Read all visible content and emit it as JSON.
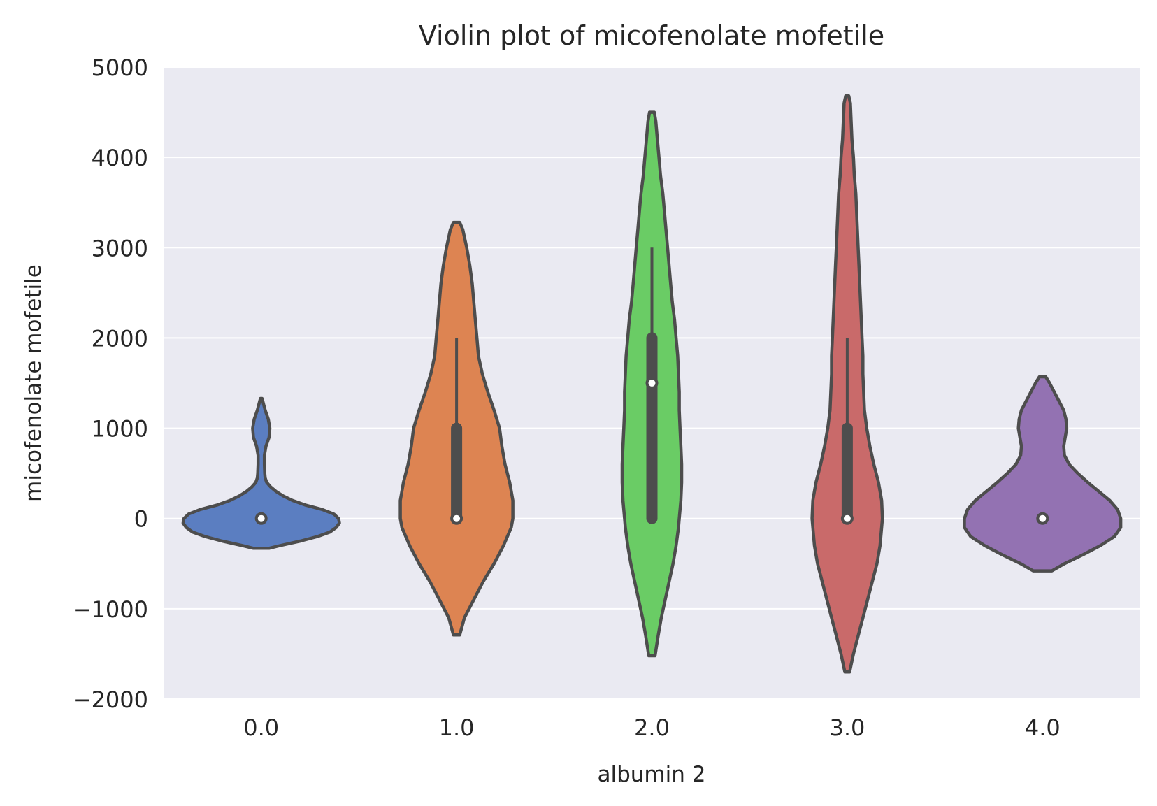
{
  "chart_data": {
    "type": "violin",
    "title": "Violin plot of micofenolate mofetile",
    "xlabel": "albumin 2",
    "ylabel": "micofenolate mofetile",
    "ylim": [
      -2000,
      5000
    ],
    "yticks": [
      -2000,
      -1000,
      0,
      1000,
      2000,
      3000,
      4000,
      5000
    ],
    "ytick_labels": [
      "−2000",
      "−1000",
      "0",
      "1000",
      "2000",
      "3000",
      "4000",
      "5000"
    ],
    "grid": true,
    "categories": [
      "0.0",
      "1.0",
      "2.0",
      "3.0",
      "4.0"
    ],
    "violins": [
      {
        "category": "0.0",
        "color": "#5b7ec1",
        "median": 0,
        "box": [
          0,
          0
        ],
        "whisker": [
          0,
          0
        ],
        "profile": [
          [
            -330,
            0.1
          ],
          [
            -300,
            0.24
          ],
          [
            -250,
            0.5
          ],
          [
            -200,
            0.72
          ],
          [
            -150,
            0.88
          ],
          [
            -100,
            0.96
          ],
          [
            -50,
            1.0
          ],
          [
            0,
            0.99
          ],
          [
            50,
            0.93
          ],
          [
            100,
            0.78
          ],
          [
            150,
            0.56
          ],
          [
            200,
            0.4
          ],
          [
            250,
            0.28
          ],
          [
            300,
            0.19
          ],
          [
            350,
            0.12
          ],
          [
            400,
            0.07
          ],
          [
            450,
            0.05
          ],
          [
            500,
            0.045
          ],
          [
            600,
            0.04
          ],
          [
            700,
            0.04
          ],
          [
            800,
            0.06
          ],
          [
            900,
            0.1
          ],
          [
            1000,
            0.11
          ],
          [
            1100,
            0.09
          ],
          [
            1200,
            0.05
          ],
          [
            1300,
            0.02
          ],
          [
            1330,
            0.01
          ]
        ]
      },
      {
        "category": "1.0",
        "color": "#dd8452",
        "median": 0,
        "box": [
          0,
          1000
        ],
        "whisker": [
          0,
          2000
        ],
        "profile": [
          [
            -1290,
            0.04
          ],
          [
            -1100,
            0.1
          ],
          [
            -900,
            0.22
          ],
          [
            -700,
            0.34
          ],
          [
            -500,
            0.48
          ],
          [
            -300,
            0.6
          ],
          [
            -100,
            0.7
          ],
          [
            0,
            0.72
          ],
          [
            200,
            0.72
          ],
          [
            400,
            0.68
          ],
          [
            600,
            0.62
          ],
          [
            800,
            0.58
          ],
          [
            1000,
            0.55
          ],
          [
            1200,
            0.48
          ],
          [
            1400,
            0.4
          ],
          [
            1600,
            0.33
          ],
          [
            1800,
            0.28
          ],
          [
            2000,
            0.26
          ],
          [
            2200,
            0.24
          ],
          [
            2400,
            0.22
          ],
          [
            2600,
            0.2
          ],
          [
            2800,
            0.17
          ],
          [
            3000,
            0.13
          ],
          [
            3200,
            0.08
          ],
          [
            3280,
            0.04
          ]
        ]
      },
      {
        "category": "2.0",
        "color": "#6acc65",
        "median": 1500,
        "box": [
          0,
          2000
        ],
        "whisker": [
          0,
          3000
        ],
        "profile": [
          [
            -1520,
            0.04
          ],
          [
            -1300,
            0.08
          ],
          [
            -1100,
            0.12
          ],
          [
            -900,
            0.17
          ],
          [
            -700,
            0.22
          ],
          [
            -500,
            0.27
          ],
          [
            -300,
            0.31
          ],
          [
            -100,
            0.34
          ],
          [
            0,
            0.35
          ],
          [
            200,
            0.37
          ],
          [
            400,
            0.38
          ],
          [
            600,
            0.38
          ],
          [
            800,
            0.37
          ],
          [
            1000,
            0.36
          ],
          [
            1200,
            0.35
          ],
          [
            1400,
            0.35
          ],
          [
            1600,
            0.34
          ],
          [
            1800,
            0.33
          ],
          [
            2000,
            0.31
          ],
          [
            2200,
            0.29
          ],
          [
            2400,
            0.26
          ],
          [
            2600,
            0.24
          ],
          [
            2800,
            0.22
          ],
          [
            3000,
            0.2
          ],
          [
            3200,
            0.18
          ],
          [
            3400,
            0.16
          ],
          [
            3600,
            0.14
          ],
          [
            3800,
            0.11
          ],
          [
            4000,
            0.09
          ],
          [
            4200,
            0.07
          ],
          [
            4400,
            0.05
          ],
          [
            4500,
            0.03
          ]
        ]
      },
      {
        "category": "3.0",
        "color": "#c96a6a",
        "median": 0,
        "box": [
          0,
          1000
        ],
        "whisker": [
          0,
          2000
        ],
        "profile": [
          [
            -1700,
            0.03
          ],
          [
            -1500,
            0.08
          ],
          [
            -1300,
            0.14
          ],
          [
            -1100,
            0.2
          ],
          [
            -900,
            0.26
          ],
          [
            -700,
            0.32
          ],
          [
            -500,
            0.38
          ],
          [
            -300,
            0.42
          ],
          [
            -100,
            0.44
          ],
          [
            0,
            0.45
          ],
          [
            200,
            0.44
          ],
          [
            400,
            0.4
          ],
          [
            600,
            0.34
          ],
          [
            800,
            0.29
          ],
          [
            1000,
            0.25
          ],
          [
            1200,
            0.22
          ],
          [
            1400,
            0.21
          ],
          [
            1600,
            0.2
          ],
          [
            1800,
            0.2
          ],
          [
            2000,
            0.19
          ],
          [
            2200,
            0.18
          ],
          [
            2400,
            0.17
          ],
          [
            2600,
            0.16
          ],
          [
            2800,
            0.15
          ],
          [
            3000,
            0.14
          ],
          [
            3200,
            0.13
          ],
          [
            3400,
            0.12
          ],
          [
            3600,
            0.11
          ],
          [
            3800,
            0.09
          ],
          [
            4000,
            0.08
          ],
          [
            4200,
            0.06
          ],
          [
            4400,
            0.05
          ],
          [
            4600,
            0.04
          ],
          [
            4680,
            0.02
          ]
        ]
      },
      {
        "category": "4.0",
        "color": "#9372b2",
        "median": 0,
        "box": [
          0,
          0
        ],
        "whisker": [
          0,
          0
        ],
        "profile": [
          [
            -580,
            0.12
          ],
          [
            -500,
            0.28
          ],
          [
            -400,
            0.52
          ],
          [
            -300,
            0.74
          ],
          [
            -200,
            0.92
          ],
          [
            -100,
            1.0
          ],
          [
            0,
            1.0
          ],
          [
            100,
            0.96
          ],
          [
            200,
            0.86
          ],
          [
            300,
            0.72
          ],
          [
            400,
            0.58
          ],
          [
            500,
            0.45
          ],
          [
            600,
            0.34
          ],
          [
            700,
            0.28
          ],
          [
            800,
            0.27
          ],
          [
            900,
            0.29
          ],
          [
            1000,
            0.31
          ],
          [
            1100,
            0.3
          ],
          [
            1200,
            0.27
          ],
          [
            1300,
            0.21
          ],
          [
            1400,
            0.15
          ],
          [
            1500,
            0.09
          ],
          [
            1570,
            0.04
          ]
        ]
      }
    ]
  }
}
